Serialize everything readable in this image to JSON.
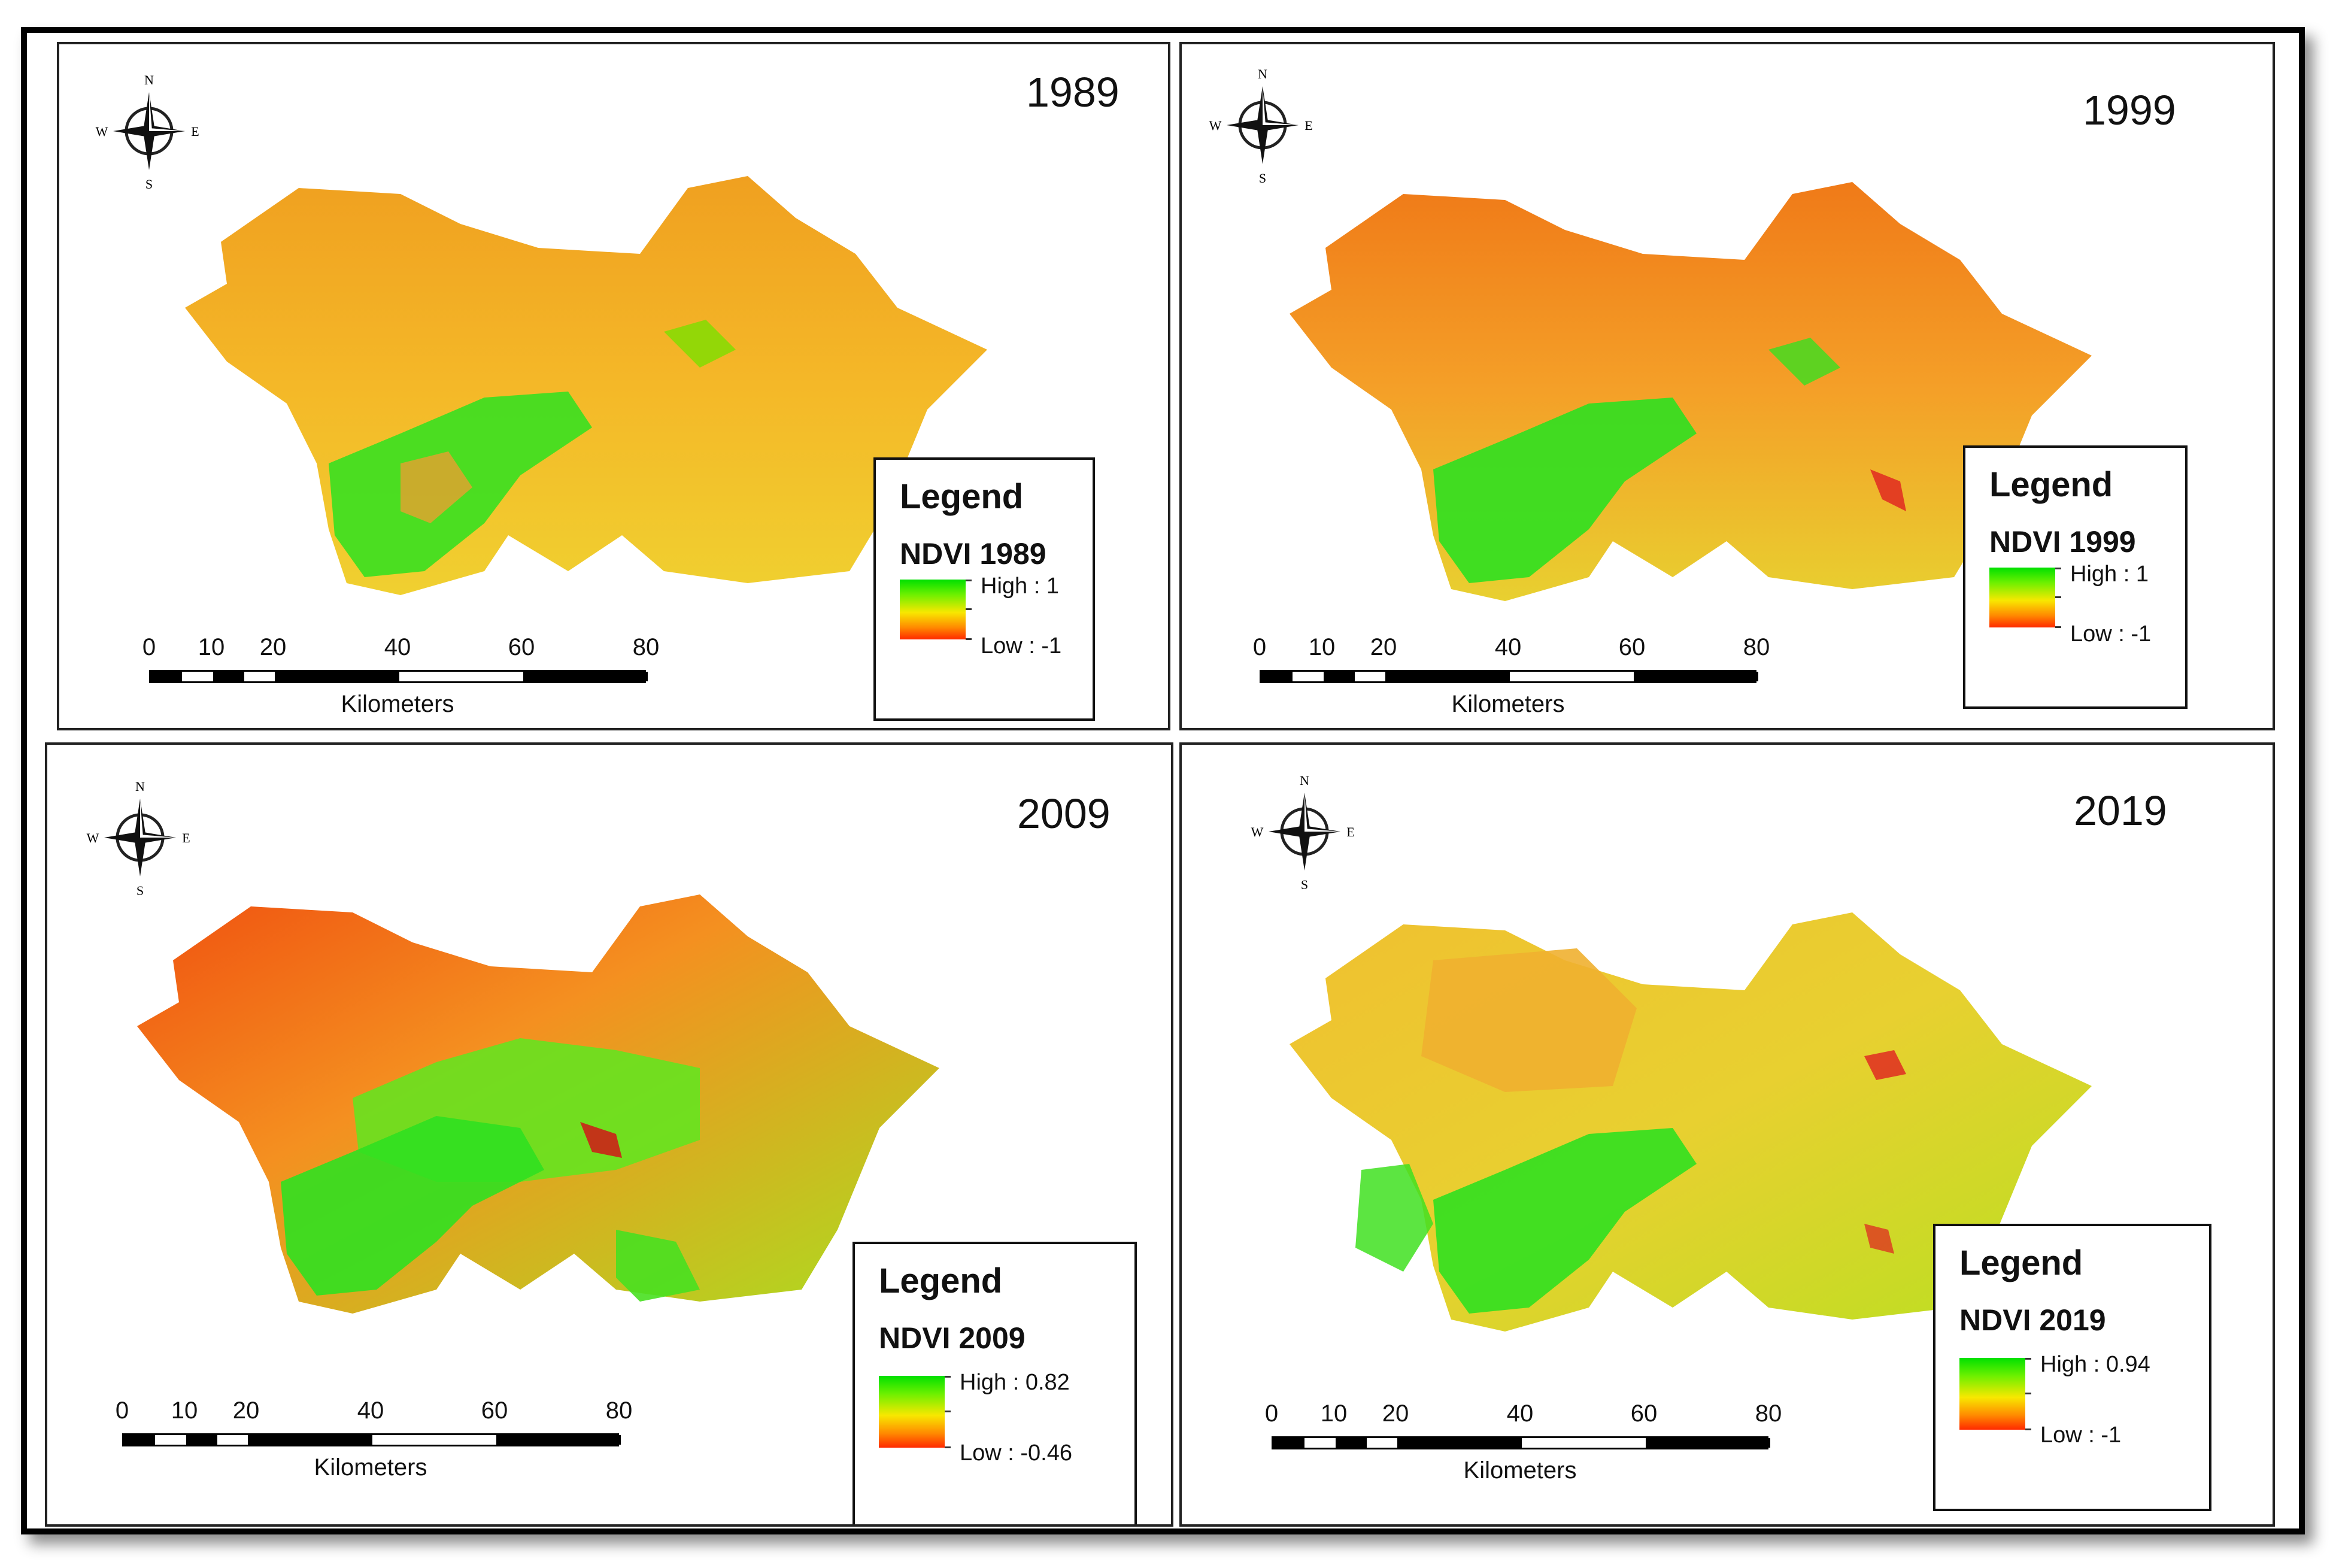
{
  "compass": {
    "n": "N",
    "s": "S",
    "e": "E",
    "w": "W"
  },
  "panels": [
    {
      "year": "1989",
      "legend_title": "Legend",
      "layer": "NDVI 1989",
      "high": "High : 1",
      "low": "Low : -1"
    },
    {
      "year": "1999",
      "legend_title": "Legend",
      "layer": "NDVI 1999",
      "high": "High : 1",
      "low": "Low : -1"
    },
    {
      "year": "2009",
      "legend_title": "Legend",
      "layer": "NDVI 2009",
      "high": "High : 0.82",
      "low": "Low : -0.46"
    },
    {
      "year": "2019",
      "legend_title": "Legend",
      "layer": "NDVI 2019",
      "high": "High : 0.94",
      "low": "Low : -1"
    }
  ],
  "scalebar": {
    "ticks": [
      "0",
      "10",
      "20",
      "40",
      "60",
      "80"
    ],
    "units": "Kilometers"
  },
  "colors": {
    "high": "#00e000",
    "mid": "#f8e800",
    "low": "#ff2a00"
  }
}
